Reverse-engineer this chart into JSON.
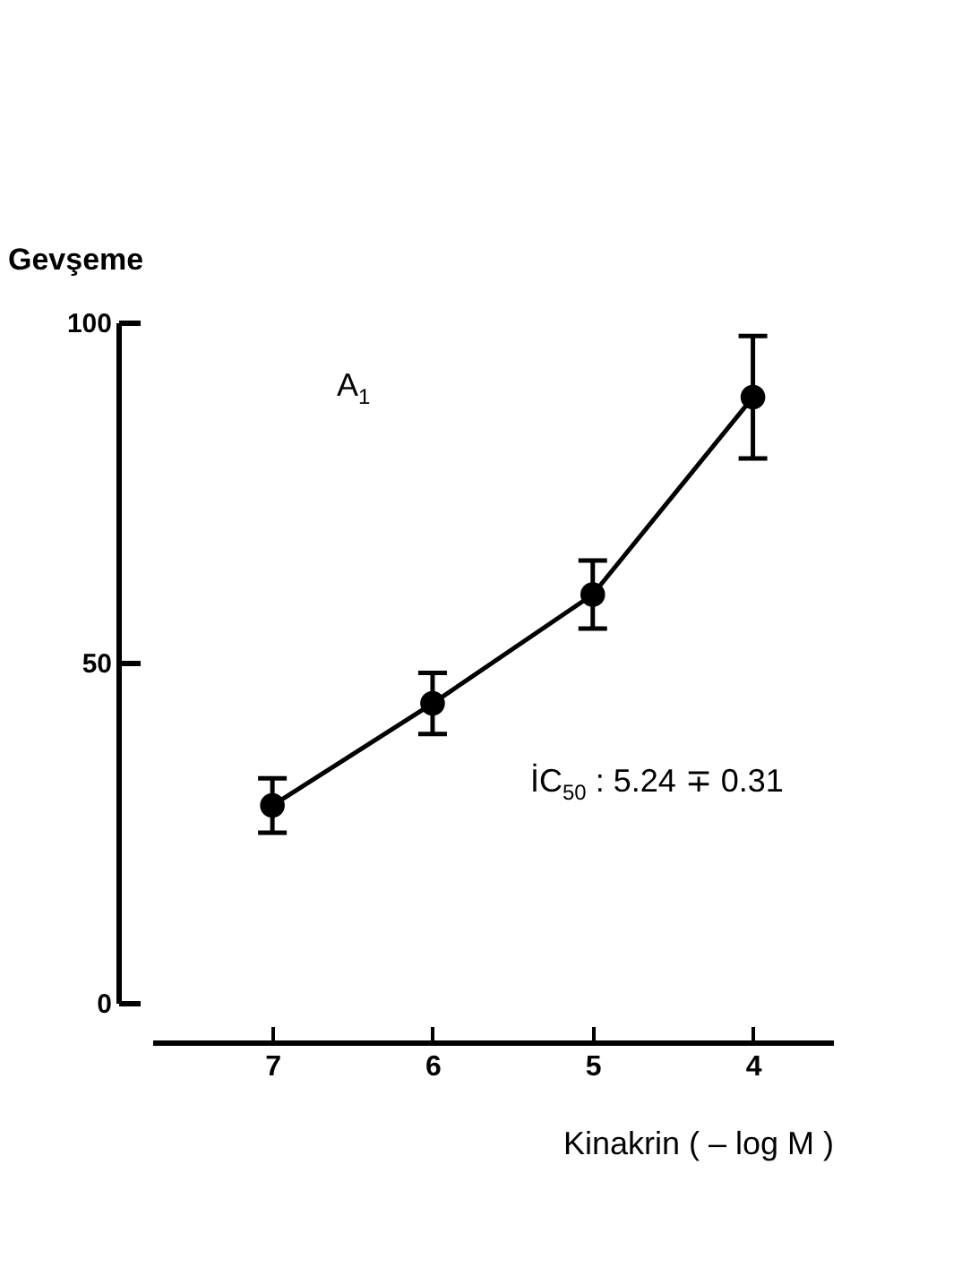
{
  "chart_data": {
    "type": "line",
    "xlabel": "Kinakrin ( – log M )",
    "ylabel": "Gevşeme",
    "annotations": [
      "A$_{1}$",
      "İC$_{50}$ : 5.24 ∓ 0.31"
    ],
    "x": [
      7,
      6,
      5,
      4
    ],
    "series": [
      {
        "color": "#000000",
        "values": [
          29,
          44,
          60,
          89
        ],
        "errors": [
          4,
          4.5,
          5,
          9
        ]
      }
    ],
    "xlim": [
      7.75,
      3.5
    ],
    "xticks": [
      7,
      6,
      5,
      4
    ],
    "ylim": [
      0,
      100
    ],
    "yticks": [
      0,
      50,
      100
    ],
    "grid": false,
    "marker": "circle",
    "line_style": "solid"
  }
}
